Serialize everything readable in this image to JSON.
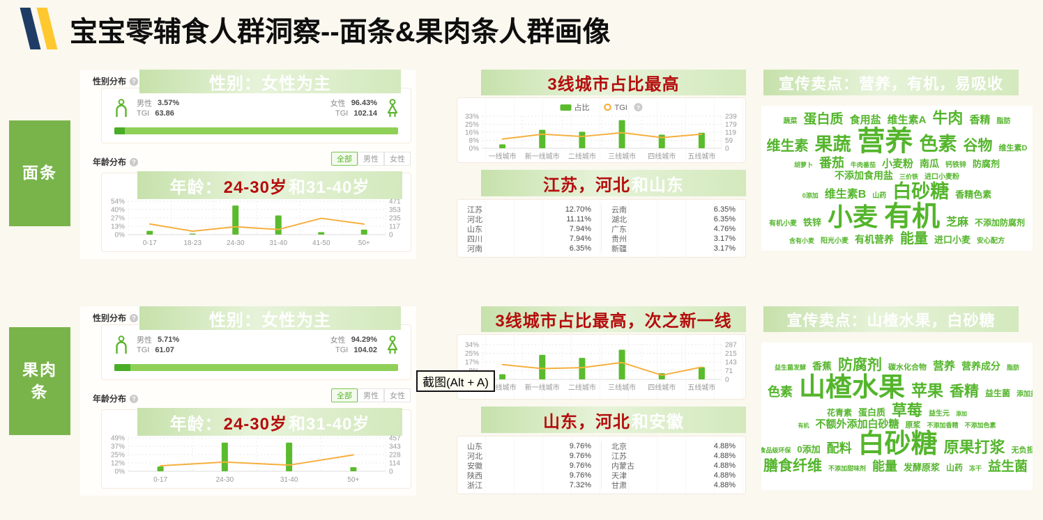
{
  "header": {
    "title": "宝宝零辅食人群洞察--面条&果肉条人群画像"
  },
  "colors": {
    "logo_navy": "#1f3c66",
    "logo_yellow": "#ffc82e",
    "banner_red": "#b50d0d",
    "bar_green": "#5abb2d",
    "line_orange": "#f6af3e",
    "cloud_green": "#54b52c",
    "side_green": "#79b44b"
  },
  "tooltip": {
    "text": "截图(Alt + A)"
  },
  "rows": [
    {
      "side_label": "面条",
      "gender": {
        "section": "性别分布",
        "banner": "性别：女性为主",
        "male_label": "男性",
        "male_pct": "3.57%",
        "tgi_label": "TGI",
        "male_tgi": "63.86",
        "female_label": "女性",
        "female_pct": "96.43%",
        "female_tgi": "102.14",
        "male_ratio_pct": 3.57
      },
      "age": {
        "section": "年龄分布",
        "tabs": {
          "labels": [
            "全部",
            "男性",
            "女性"
          ],
          "active": 0
        },
        "banner": [
          {
            "t": "年龄：",
            "c": "white"
          },
          {
            "t": "24-30岁",
            "c": "red"
          },
          {
            "t": "和31-40岁",
            "c": "white"
          }
        ]
      },
      "city": {
        "banner": [
          {
            "t": "3线城市占比最高",
            "c": "red"
          }
        ]
      },
      "province": {
        "banner": [
          {
            "t": "江苏，河北",
            "c": "red"
          },
          {
            "t": "和山东",
            "c": "white"
          }
        ],
        "left": [
          [
            "江苏",
            "12.70%"
          ],
          [
            "河北",
            "11.11%"
          ],
          [
            "山东",
            "7.94%"
          ],
          [
            "四川",
            "7.94%"
          ],
          [
            "河南",
            "6.35%"
          ]
        ],
        "right": [
          [
            "云南",
            "6.35%"
          ],
          [
            "湖北",
            "6.35%"
          ],
          [
            "广东",
            "4.76%"
          ],
          [
            "贵州",
            "3.17%"
          ],
          [
            "新疆",
            "3.17%"
          ]
        ]
      },
      "cloud": {
        "banner": "宣传卖点：营养，有机，易吸收",
        "rows": [
          [
            {
              "t": "蔬菜",
              "s": 10
            },
            {
              "t": "蛋白质",
              "s": 19
            },
            {
              "t": "食用盐",
              "s": 15
            },
            {
              "t": "维生素A",
              "s": 15
            },
            {
              "t": "牛肉",
              "s": 22
            },
            {
              "t": "香精",
              "s": 15
            },
            {
              "t": "脂肪",
              "s": 10
            }
          ],
          [
            {
              "t": "维生素",
              "s": 20
            },
            {
              "t": "果蔬",
              "s": 26
            },
            {
              "t": "营养",
              "s": 40
            },
            {
              "t": "色素",
              "s": 27
            },
            {
              "t": "谷物",
              "s": 21
            },
            {
              "t": "维生素D",
              "s": 11
            }
          ],
          [
            {
              "t": "胡萝卜",
              "s": 9
            },
            {
              "t": "番茄",
              "s": 18
            },
            {
              "t": "牛肉番茄",
              "s": 9
            },
            {
              "t": "小麦粉",
              "s": 15
            },
            {
              "t": "南瓜",
              "s": 14
            },
            {
              "t": "钙铁锌",
              "s": 10
            },
            {
              "t": "防腐剂",
              "s": 13
            }
          ],
          [
            {
              "t": "不添加食用盐",
              "s": 14
            },
            {
              "t": "三价铁",
              "s": 9
            },
            {
              "t": "进口小麦粉",
              "s": 10
            }
          ],
          [
            {
              "t": "0添加",
              "s": 9
            },
            {
              "t": "维生素B",
              "s": 16
            },
            {
              "t": "山药",
              "s": 10
            },
            {
              "t": "白砂糖",
              "s": 27
            },
            {
              "t": "香精色素",
              "s": 13
            }
          ],
          [
            {
              "t": "有机小麦",
              "s": 10
            },
            {
              "t": "铁锌",
              "s": 13
            },
            {
              "t": "小麦",
              "s": 36
            },
            {
              "t": "有机",
              "s": 40
            },
            {
              "t": "芝麻",
              "s": 16
            },
            {
              "t": "不添加防腐剂",
              "s": 12
            }
          ],
          [
            {
              "t": "含有小麦",
              "s": 9
            },
            {
              "t": "阳光小麦",
              "s": 10
            },
            {
              "t": "有机营养",
              "s": 14
            },
            {
              "t": "能量",
              "s": 20
            },
            {
              "t": "进口小麦",
              "s": 13
            },
            {
              "t": "安心配方",
              "s": 10
            }
          ]
        ]
      }
    },
    {
      "side_label": "果肉条",
      "gender": {
        "section": "性别分布",
        "banner": "性别：女性为主",
        "male_label": "男性",
        "male_pct": "5.71%",
        "tgi_label": "TGI",
        "male_tgi": "61.07",
        "female_label": "女性",
        "female_pct": "94.29%",
        "female_tgi": "104.02",
        "male_ratio_pct": 5.71
      },
      "age": {
        "section": "年龄分布",
        "tabs": {
          "labels": [
            "全部",
            "男性",
            "女性"
          ],
          "active": 0
        },
        "banner": [
          {
            "t": "年龄：",
            "c": "white"
          },
          {
            "t": "24-30岁",
            "c": "red"
          },
          {
            "t": "和31-40岁",
            "c": "white"
          }
        ]
      },
      "city": {
        "banner": [
          {
            "t": "3线城市占比最高，次之新一线",
            "c": "red"
          }
        ]
      },
      "province": {
        "banner": [
          {
            "t": "山东，河北",
            "c": "red"
          },
          {
            "t": "和安徽",
            "c": "white"
          }
        ],
        "left": [
          [
            "山东",
            "9.76%"
          ],
          [
            "河北",
            "9.76%"
          ],
          [
            "安徽",
            "9.76%"
          ],
          [
            "陕西",
            "9.76%"
          ],
          [
            "浙江",
            "7.32%"
          ]
        ],
        "right": [
          [
            "北京",
            "4.88%"
          ],
          [
            "江苏",
            "4.88%"
          ],
          [
            "内蒙古",
            "4.88%"
          ],
          [
            "天津",
            "4.88%"
          ],
          [
            "甘肃",
            "4.88%"
          ]
        ]
      },
      "cloud": {
        "banner": "宣传卖点：山楂水果，白砂糖",
        "rows": [
          [
            {
              "t": "益生菌发酵",
              "s": 9
            },
            {
              "t": "香蕉",
              "s": 14
            },
            {
              "t": "防腐剂",
              "s": 21
            },
            {
              "t": "碳水化合物",
              "s": 11
            },
            {
              "t": "营养",
              "s": 16
            },
            {
              "t": "营养成分",
              "s": 14
            },
            {
              "t": "脂肪",
              "s": 9
            }
          ],
          [
            {
              "t": "海藻糖",
              "s": 9
            },
            {
              "t": "色素",
              "s": 18
            },
            {
              "t": "山楂水果",
              "s": 38
            },
            {
              "t": "苹果",
              "s": 23
            },
            {
              "t": "香精",
              "s": 21
            },
            {
              "t": "益生菌",
              "s": 12
            },
            {
              "t": "添加益生菌",
              "s": 10
            }
          ],
          [
            {
              "t": "花青素",
              "s": 12
            },
            {
              "t": "蛋白质",
              "s": 13
            },
            {
              "t": "草莓",
              "s": 22
            },
            {
              "t": "益生元",
              "s": 10
            },
            {
              "t": "添加",
              "s": 8
            }
          ],
          [
            {
              "t": "有机",
              "s": 8
            },
            {
              "t": "不额外添加白砂糖",
              "s": 15
            },
            {
              "t": "原浆",
              "s": 11
            },
            {
              "t": "不添加香精",
              "s": 9
            },
            {
              "t": "不添加色素",
              "s": 9
            }
          ],
          [
            {
              "t": "食品级环保",
              "s": 9
            },
            {
              "t": "0添加",
              "s": 13
            },
            {
              "t": "配料",
              "s": 18
            },
            {
              "t": "白砂糖",
              "s": 38
            },
            {
              "t": "原果打浆",
              "s": 22
            },
            {
              "t": "无负担",
              "s": 11
            }
          ],
          [
            {
              "t": "配料简单",
              "s": 9
            },
            {
              "t": "膳食纤维",
              "s": 21
            },
            {
              "t": "不添加甜味剂",
              "s": 9
            },
            {
              "t": "能量",
              "s": 18
            },
            {
              "t": "发酵原浆",
              "s": 13
            },
            {
              "t": "山药",
              "s": 12
            },
            {
              "t": "冻干",
              "s": 9
            },
            {
              "t": "益生菌",
              "s": 19
            },
            {
              "t": "无卡拉胶",
              "s": 10
            }
          ]
        ]
      }
    }
  ],
  "chart_data": [
    {
      "id": "noodle-age",
      "type": "bar",
      "title": "年龄：24-30岁和31-40岁",
      "categories": [
        "0-17",
        "18-23",
        "24-30",
        "31-40",
        "41-50",
        "50+"
      ],
      "series": [
        {
          "name": "占比",
          "type": "bar",
          "axis": "left",
          "values": [
            6,
            1.5,
            47,
            31,
            4,
            8
          ]
        },
        {
          "name": "TGI",
          "type": "line",
          "axis": "right",
          "values": [
            150,
            48,
            110,
            72,
            230,
            148
          ]
        }
      ],
      "y_left": {
        "ticks": [
          "0%",
          "13%",
          "27%",
          "40%",
          "54%"
        ],
        "max": 54
      },
      "y_right": {
        "ticks": [
          "0",
          "117",
          "235",
          "353",
          "471"
        ],
        "max": 471
      },
      "grid": true,
      "legend_position": "none"
    },
    {
      "id": "noodle-city",
      "type": "bar",
      "title": "3线城市占比最高",
      "categories": [
        "一线城市",
        "新一线城市",
        "二线城市",
        "三线城市",
        "四线城市",
        "五线城市"
      ],
      "series": [
        {
          "name": "占比",
          "type": "bar",
          "axis": "left",
          "values": [
            4,
            19,
            17,
            29,
            14,
            16
          ]
        },
        {
          "name": "TGI",
          "type": "line",
          "axis": "right",
          "values": [
            69,
            105,
            88,
            116,
            80,
            105
          ]
        }
      ],
      "y_left": {
        "ticks": [
          "0%",
          "8%",
          "16%",
          "25%",
          "33%"
        ],
        "max": 33
      },
      "y_right": {
        "ticks": [
          "0",
          "59",
          "119",
          "179",
          "239"
        ],
        "max": 239
      },
      "grid": true,
      "legend_position": "top"
    },
    {
      "id": "fruit-age",
      "type": "bar",
      "title": "年龄：24-30岁和31-40岁",
      "categories": [
        "0-17",
        "24-30",
        "31-40",
        "50+"
      ],
      "series": [
        {
          "name": "占比",
          "type": "bar",
          "axis": "left",
          "values": [
            7,
            42,
            42,
            6
          ]
        },
        {
          "name": "TGI",
          "type": "line",
          "axis": "right",
          "values": [
            75,
            126,
            84,
            224
          ]
        }
      ],
      "y_left": {
        "ticks": [
          "0%",
          "12%",
          "25%",
          "37%",
          "49%"
        ],
        "max": 49
      },
      "y_right": {
        "ticks": [
          "0",
          "114",
          "228",
          "343",
          "457"
        ],
        "max": 457
      },
      "grid": true,
      "legend_position": "none"
    },
    {
      "id": "fruit-city",
      "type": "bar",
      "title": "3线城市占比最高，次之新一线",
      "categories": [
        "一线城市",
        "新一线城市",
        "二线城市",
        "三线城市",
        "四线城市",
        "五线城市"
      ],
      "series": [
        {
          "name": "占比",
          "type": "bar",
          "axis": "left",
          "values": [
            5,
            24,
            21,
            29,
            6,
            12
          ]
        },
        {
          "name": "TGI",
          "type": "line",
          "axis": "right",
          "values": [
            122,
            89,
            97,
            139,
            34,
            101
          ]
        }
      ],
      "y_left": {
        "ticks": [
          "0%",
          "8%",
          "17%",
          "25%",
          "34%"
        ],
        "max": 34
      },
      "y_right": {
        "ticks": [
          "0",
          "71",
          "143",
          "215",
          "287"
        ],
        "max": 287
      },
      "grid": true,
      "legend_position": "none"
    }
  ]
}
